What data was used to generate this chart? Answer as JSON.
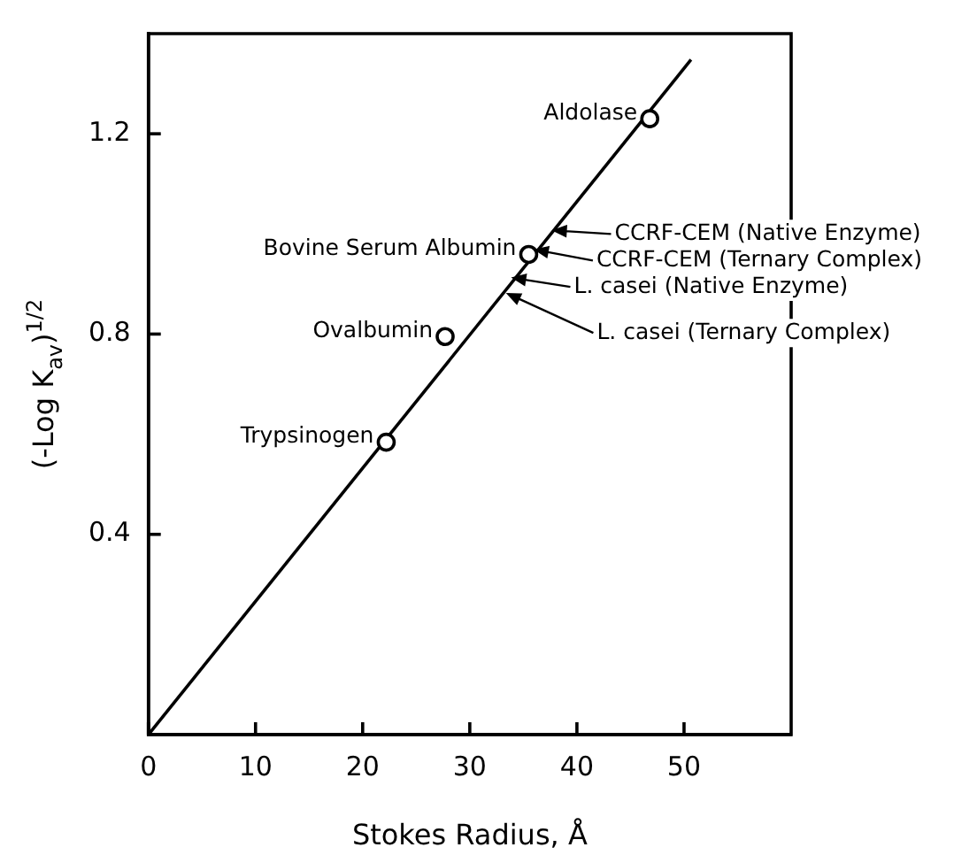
{
  "chart_data": {
    "type": "scatter",
    "xlabel": "Stokes Radius, Å",
    "ylabel": "(-Log K$_{av}$)$^{1/2}$",
    "xlim": [
      0,
      60
    ],
    "ylim": [
      0,
      1.4
    ],
    "xticks": [
      0,
      10,
      20,
      30,
      40,
      50
    ],
    "yticks": [
      0.4,
      0.8,
      1.2
    ],
    "grid": false,
    "legend": false,
    "marker": "circle",
    "series": [
      {
        "type": "scatter",
        "color": "#000000",
        "x": [
          22.2,
          27.7,
          35.5,
          46.8
        ],
        "values": [
          0.584,
          0.795,
          0.959,
          1.23
        ]
      },
      {
        "type": "line",
        "color": "#000000",
        "marker": "none",
        "x": [
          0,
          50.65
        ],
        "values": [
          0,
          1.348
        ]
      }
    ],
    "annotations": [
      {
        "text": "Trypsinogen",
        "x": 22.2,
        "y": 0.584
      },
      {
        "text": "Ovalbumin",
        "x": 27.7,
        "y": 0.795
      },
      {
        "text": "Bovine Serum Albumin",
        "x": 35.5,
        "y": 0.959
      },
      {
        "text": "Aldolase",
        "x": 46.8,
        "y": 1.23
      },
      {
        "text": "CCRF-CEM (Native Enzyme)",
        "x": 37.9,
        "y": 1.007
      },
      {
        "text": "CCRF-CEM (Ternary Complex)",
        "x": 36.2,
        "y": 0.968
      },
      {
        "text": "L. casei (Native Enzyme)",
        "x": 34.1,
        "y": 0.912
      },
      {
        "text": "L. casei (Ternary Complex)",
        "x": 33.6,
        "y": 0.88
      }
    ]
  }
}
